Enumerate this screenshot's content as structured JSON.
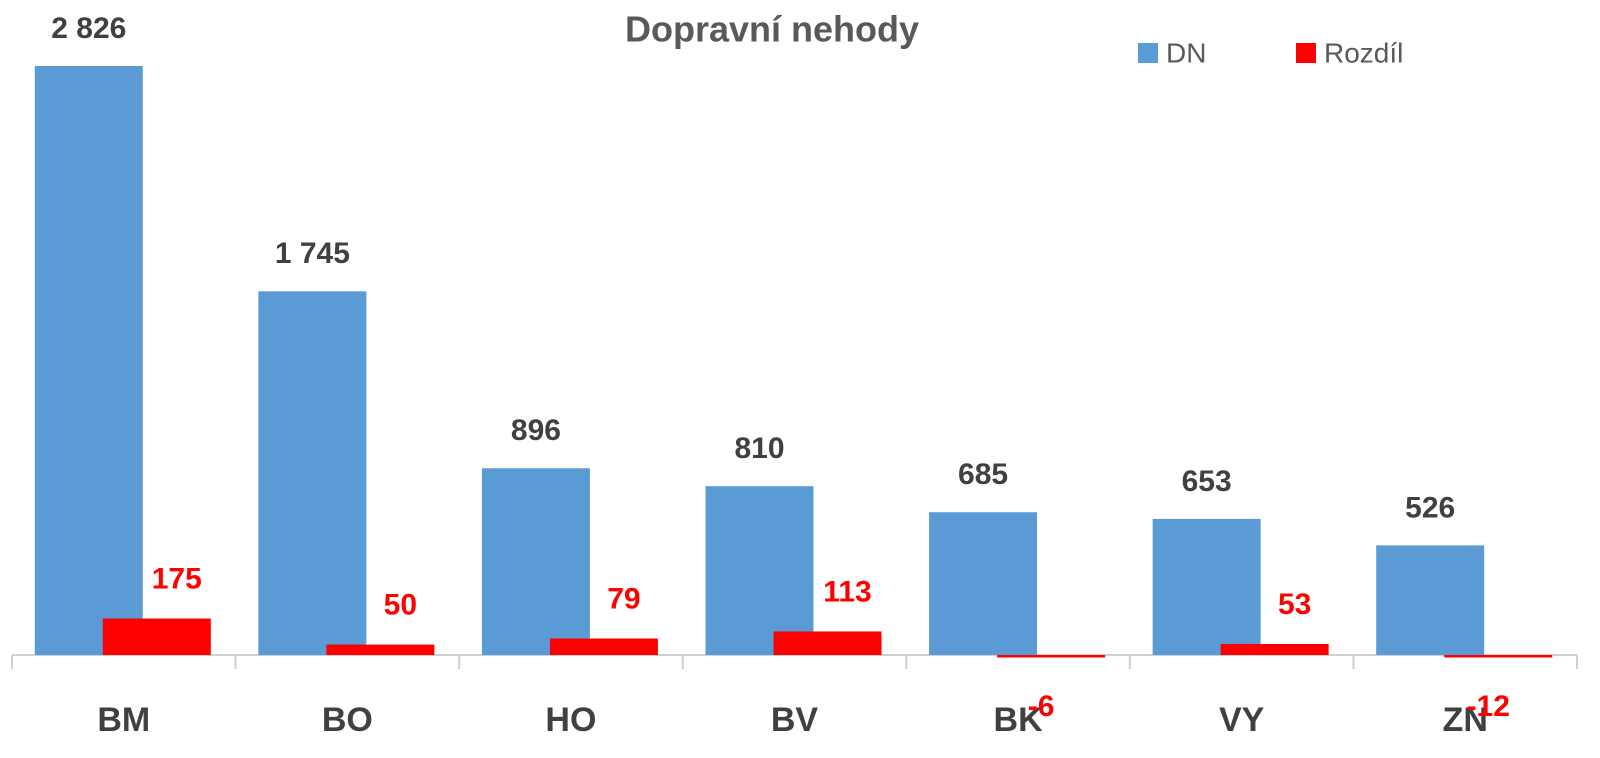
{
  "chart_data": {
    "type": "bar",
    "title": "Dopravní nehody",
    "categories": [
      "BM",
      "BO",
      "HO",
      "BV",
      "BK",
      "VY",
      "ZN"
    ],
    "series": [
      {
        "name": "DN",
        "color": "#5b9bd5",
        "values": [
          2826,
          1745,
          896,
          810,
          685,
          653,
          526
        ],
        "value_labels": [
          "2 826",
          "1 745",
          "896",
          "810",
          "685",
          "653",
          "526"
        ]
      },
      {
        "name": "Rozdíl",
        "color": "#ff0000",
        "values": [
          175,
          50,
          79,
          113,
          -6,
          53,
          -12
        ]
      }
    ],
    "legend": "top-right"
  }
}
